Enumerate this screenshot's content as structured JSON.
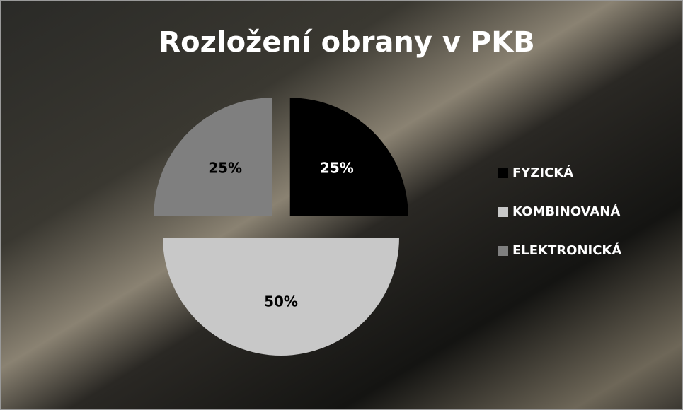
{
  "chart_data": {
    "type": "pie",
    "title": "Rozložení obrany v PKB",
    "categories": [
      "FYZICKÁ",
      "KOMBINOVANÁ",
      "ELEKTRONICKÁ"
    ],
    "values": [
      25,
      50,
      25
    ],
    "value_labels": [
      "25%",
      "50%",
      "25%"
    ],
    "colors": [
      "#000000",
      "#c8c8c8",
      "#7f7f7f"
    ],
    "legend": "right"
  }
}
